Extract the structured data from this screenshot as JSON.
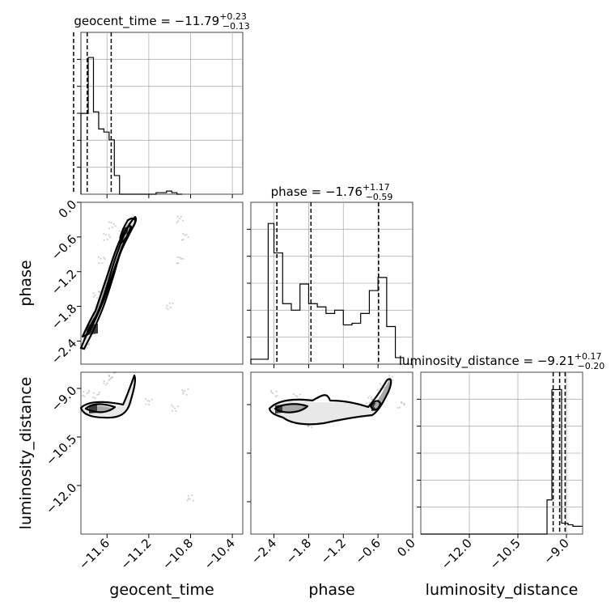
{
  "chart_data": {
    "type": "corner",
    "parameters": [
      {
        "key": "geocent_time",
        "label": "geocent_time",
        "range": [
          -11.85,
          -10.3
        ],
        "ticks": [
          -11.6,
          -11.2,
          -10.8,
          -10.4
        ],
        "tick_labels": [
          "−11.6",
          "−11.2",
          "−10.8",
          "−10.4"
        ],
        "title_param": "geocent_time",
        "title_median": "−11.79",
        "title_plus": "+0.23",
        "title_minus": "−0.13",
        "quantiles": [
          -11.92,
          -11.79,
          -11.56
        ]
      },
      {
        "key": "phase",
        "label": "phase",
        "range": [
          -2.8,
          0.0
        ],
        "ticks": [
          -2.4,
          -1.8,
          -1.2,
          -0.6,
          0.0
        ],
        "tick_labels": [
          "−2.4",
          "−1.8",
          "−1.2",
          "−0.6",
          "0.0"
        ],
        "title_param": "phase",
        "title_median": "−1.76",
        "title_plus": "+1.17",
        "title_minus": "−0.59",
        "quantiles": [
          -2.35,
          -1.76,
          -0.59
        ]
      },
      {
        "key": "luminosity_distance",
        "label": "luminosity_distance",
        "range": [
          -13.5,
          -8.5
        ],
        "ticks": [
          -12.0,
          -10.5,
          -9.0
        ],
        "tick_labels": [
          "−12.0",
          "−10.5",
          "−9.0"
        ],
        "title_param": "luminosity_distance",
        "title_median": "−9.21",
        "title_plus": "+0.17",
        "title_minus": "−0.20",
        "quantiles": [
          -9.41,
          -9.21,
          -9.04
        ]
      }
    ],
    "histograms": [
      {
        "param": "geocent_time",
        "bin_edges": [
          -11.85,
          -11.78,
          -11.73,
          -11.68,
          -11.63,
          -11.58,
          -11.53,
          -11.48,
          -11.43,
          -11.38,
          -11.33,
          -11.28,
          -11.23,
          -11.18,
          -11.13,
          -11.08,
          -11.03,
          -10.98,
          -10.93,
          -10.88
        ],
        "counts": [
          0.52,
          0.88,
          0.53,
          0.42,
          0.4,
          0.35,
          0.12,
          0.0,
          0.0,
          0.0,
          0.0,
          0.0,
          0.0,
          0.0,
          0.01,
          0.01,
          0.02,
          0.01,
          0.0
        ],
        "ymax": 1.0
      },
      {
        "param": "phase",
        "bin_edges": [
          -2.8,
          -2.65,
          -2.5,
          -2.4,
          -2.25,
          -2.1,
          -1.95,
          -1.8,
          -1.65,
          -1.5,
          -1.35,
          -1.2,
          -1.05,
          -0.9,
          -0.75,
          -0.6,
          -0.45,
          -0.3,
          -0.15
        ],
        "counts": [
          0.03,
          0.03,
          0.86,
          0.68,
          0.37,
          0.33,
          0.49,
          0.37,
          0.35,
          0.31,
          0.33,
          0.24,
          0.25,
          0.31,
          0.45,
          0.53,
          0.23,
          0.04
        ],
        "ymax": 0.95
      },
      {
        "param": "luminosity_distance",
        "bin_edges": [
          -13.5,
          -9.6,
          -9.45,
          -9.3,
          -9.15,
          -8.95,
          -8.8,
          -8.5
        ],
        "counts": [
          0.0,
          0.22,
          0.93,
          0.93,
          0.07,
          0.06,
          0.05
        ],
        "ymax": 1.0
      }
    ],
    "pair_plots": [
      {
        "x": "geocent_time",
        "y": "phase",
        "points": [
          [
            -11.8,
            -2.5
          ],
          [
            -11.75,
            -2.1
          ],
          [
            -11.7,
            -1.6
          ],
          [
            -11.65,
            -1.0
          ],
          [
            -11.6,
            -0.6
          ],
          [
            -11.55,
            -0.4
          ],
          [
            -11.0,
            -1.8
          ],
          [
            -10.9,
            -1.0
          ],
          [
            -10.85,
            -0.6
          ],
          [
            -10.9,
            -0.3
          ],
          [
            -11.45,
            -0.55
          ]
        ]
      },
      {
        "x": "geocent_time",
        "y": "luminosity_distance",
        "points": [
          [
            -11.8,
            -9.15
          ],
          [
            -11.7,
            -9.2
          ],
          [
            -11.6,
            -8.8
          ],
          [
            -11.55,
            -8.6
          ],
          [
            -11.2,
            -9.4
          ],
          [
            -10.95,
            -9.6
          ],
          [
            -10.85,
            -9.1
          ],
          [
            -11.4,
            -9.5
          ],
          [
            -10.8,
            -12.4
          ]
        ]
      },
      {
        "x": "phase",
        "y": "luminosity_distance",
        "points": [
          [
            -2.4,
            -9.15
          ],
          [
            -2.0,
            -9.25
          ],
          [
            -1.6,
            -9.6
          ],
          [
            -1.2,
            -9.55
          ],
          [
            -0.75,
            -9.35
          ],
          [
            -0.55,
            -8.95
          ],
          [
            -0.4,
            -8.7
          ],
          [
            -0.2,
            -9.5
          ],
          [
            -1.8,
            -10.1
          ],
          [
            -1.3,
            -9.9
          ]
        ]
      }
    ]
  }
}
